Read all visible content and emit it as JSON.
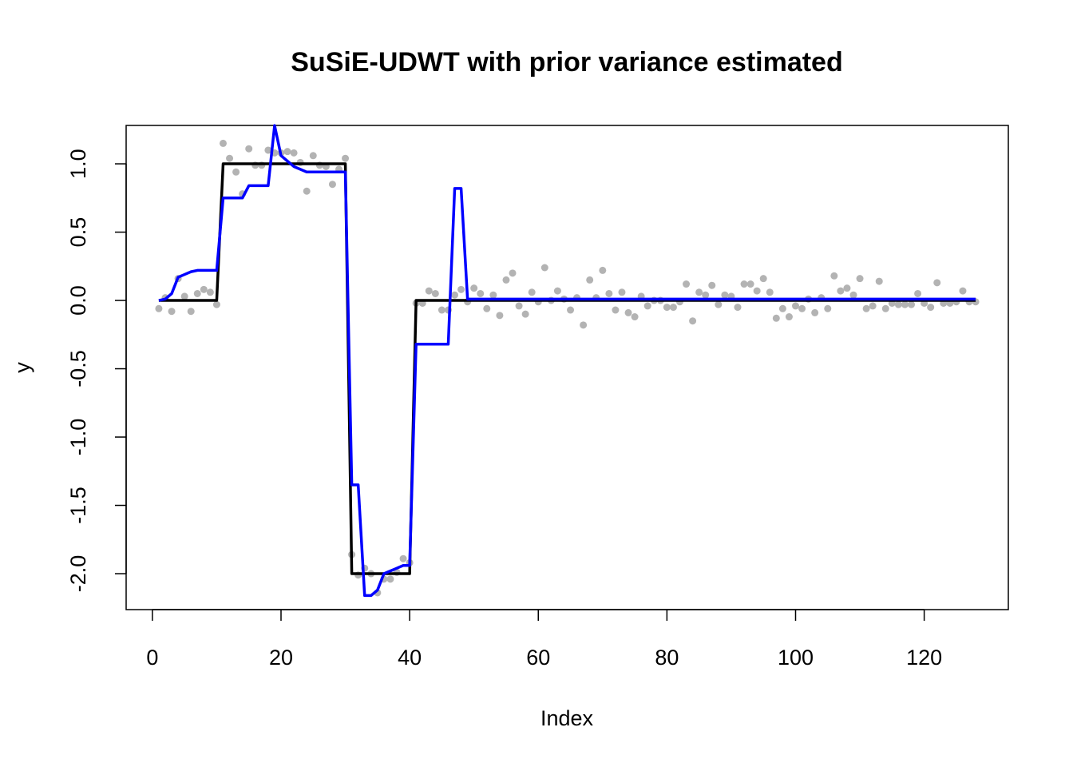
{
  "chart_data": {
    "type": "line",
    "title": "SuSiE-UDWT with prior variance estimated",
    "x_label": "Index",
    "y_label": "y",
    "x": [
      1,
      2,
      3,
      4,
      5,
      6,
      7,
      8,
      9,
      10,
      11,
      12,
      13,
      14,
      15,
      16,
      17,
      18,
      19,
      20,
      21,
      22,
      23,
      24,
      25,
      26,
      27,
      28,
      29,
      30,
      31,
      32,
      33,
      34,
      35,
      36,
      37,
      38,
      39,
      40,
      41,
      42,
      43,
      44,
      45,
      46,
      47,
      48,
      49,
      50,
      51,
      52,
      53,
      54,
      55,
      56,
      57,
      58,
      59,
      60,
      61,
      62,
      63,
      64,
      65,
      66,
      67,
      68,
      69,
      70,
      71,
      72,
      73,
      74,
      75,
      76,
      77,
      78,
      79,
      80,
      81,
      82,
      83,
      84,
      85,
      86,
      87,
      88,
      89,
      90,
      91,
      92,
      93,
      94,
      95,
      96,
      97,
      98,
      99,
      100,
      101,
      102,
      103,
      104,
      105,
      106,
      107,
      108,
      109,
      110,
      111,
      112,
      113,
      114,
      115,
      116,
      117,
      118,
      119,
      120,
      121,
      122,
      123,
      124,
      125,
      126,
      127,
      128
    ],
    "series": [
      {
        "mode": "points",
        "color": "#b3b3b3",
        "values": [
          -0.06,
          0.02,
          -0.08,
          0.16,
          0.03,
          -0.08,
          0.05,
          0.08,
          0.06,
          -0.03,
          1.15,
          1.04,
          0.94,
          0.78,
          1.11,
          0.99,
          0.99,
          1.1,
          1.08,
          1.08,
          1.09,
          1.08,
          1.01,
          0.8,
          1.06,
          0.99,
          0.98,
          0.85,
          0.96,
          1.04,
          -1.86,
          -2.01,
          -1.96,
          -2.0,
          -2.14,
          -2.04,
          -2.04,
          -1.99,
          -1.89,
          -1.92,
          -0.02,
          -0.02,
          0.07,
          0.05,
          -0.07,
          -0.07,
          0.04,
          0.08,
          -0.01,
          0.09,
          0.05,
          -0.06,
          0.04,
          -0.11,
          0.15,
          0.2,
          -0.04,
          -0.1,
          0.06,
          -0.01,
          0.24,
          0.0,
          0.07,
          0.01,
          -0.07,
          0.02,
          -0.18,
          0.15,
          0.02,
          0.22,
          0.05,
          -0.07,
          0.06,
          -0.09,
          -0.12,
          0.03,
          -0.04,
          0.0,
          0.0,
          -0.05,
          -0.05,
          -0.01,
          0.12,
          -0.15,
          0.06,
          0.04,
          0.11,
          -0.03,
          0.04,
          0.03,
          -0.05,
          0.12,
          0.12,
          0.07,
          0.16,
          0.06,
          -0.13,
          -0.06,
          -0.12,
          -0.04,
          -0.06,
          0.01,
          -0.09,
          0.02,
          -0.06,
          0.18,
          0.07,
          0.09,
          0.04,
          0.16,
          -0.06,
          -0.04,
          0.14,
          -0.06,
          -0.02,
          -0.03,
          -0.03,
          -0.03,
          0.05,
          -0.02,
          -0.05,
          0.13,
          -0.02,
          -0.02,
          -0.01,
          0.07,
          -0.01,
          -0.01
        ]
      },
      {
        "mode": "line",
        "color": "#000000",
        "values": [
          0,
          0,
          0,
          0,
          0,
          0,
          0,
          0,
          0,
          0,
          1,
          1,
          1,
          1,
          1,
          1,
          1,
          1,
          1,
          1,
          1,
          1,
          1,
          1,
          1,
          1,
          1,
          1,
          1,
          1,
          -2,
          -2,
          -2,
          -2,
          -2,
          -2,
          -2,
          -2,
          -2,
          -2,
          0,
          0,
          0,
          0,
          0,
          0,
          0,
          0,
          0,
          0,
          0,
          0,
          0,
          0,
          0,
          0,
          0,
          0,
          0,
          0,
          0,
          0,
          0,
          0,
          0,
          0,
          0,
          0,
          0,
          0,
          0,
          0,
          0,
          0,
          0,
          0,
          0,
          0,
          0,
          0,
          0,
          0,
          0,
          0,
          0,
          0,
          0,
          0,
          0,
          0,
          0,
          0,
          0,
          0,
          0,
          0,
          0,
          0,
          0,
          0,
          0,
          0,
          0,
          0,
          0,
          0,
          0,
          0,
          0,
          0,
          0,
          0,
          0,
          0,
          0,
          0,
          0,
          0,
          0,
          0,
          0,
          0,
          0,
          0,
          0,
          0,
          0,
          0
        ]
      },
      {
        "mode": "line",
        "color": "#0000ff",
        "values": [
          0,
          0.01,
          0.05,
          0.17,
          0.19,
          0.21,
          0.22,
          0.22,
          0.22,
          0.22,
          0.75,
          0.75,
          0.75,
          0.75,
          0.84,
          0.84,
          0.84,
          0.84,
          1.28,
          1.06,
          1.02,
          0.98,
          0.96,
          0.94,
          0.94,
          0.94,
          0.94,
          0.94,
          0.94,
          0.94,
          -1.35,
          -1.35,
          -2.16,
          -2.16,
          -2.12,
          -2.0,
          -1.98,
          -1.96,
          -1.94,
          -1.94,
          -0.32,
          -0.32,
          -0.32,
          -0.32,
          -0.32,
          -0.32,
          0.82,
          0.82,
          0.01,
          0.01,
          0.01,
          0.01,
          0.01,
          0.01,
          0.01,
          0.01,
          0.01,
          0.01,
          0.01,
          0.01,
          0.01,
          0.01,
          0.01,
          0.01,
          0.01,
          0.01,
          0.01,
          0.01,
          0.01,
          0.01,
          0.01,
          0.01,
          0.01,
          0.01,
          0.01,
          0.01,
          0.01,
          0.01,
          0.01,
          0.01,
          0.01,
          0.01,
          0.01,
          0.01,
          0.01,
          0.01,
          0.01,
          0.01,
          0.01,
          0.01,
          0.01,
          0.01,
          0.01,
          0.01,
          0.01,
          0.01,
          0.01,
          0.01,
          0.01,
          0.01,
          0.01,
          0.01,
          0.01,
          0.01,
          0.01,
          0.01,
          0.01,
          0.01,
          0.01,
          0.01,
          0.01,
          0.01,
          0.01,
          0.01,
          0.01,
          0.01,
          0.01,
          0.01,
          0.01,
          0.01,
          0.01,
          0.01,
          0.01,
          0.01,
          0.01,
          0.01,
          0.01,
          0.01
        ]
      }
    ],
    "xlim": [
      -4.08,
      133.08
    ],
    "ylim": [
      -2.263,
      1.281
    ],
    "xticks": [
      0,
      20,
      40,
      60,
      80,
      100,
      120
    ],
    "yticks": [
      {
        "value": -2,
        "label": "-2.0"
      },
      -1.5,
      {
        "value": -1,
        "label": "-1.0"
      },
      -0.5,
      {
        "value": 0,
        "label": "0.0"
      },
      0.5,
      {
        "value": 1,
        "label": "1.0"
      }
    ]
  }
}
